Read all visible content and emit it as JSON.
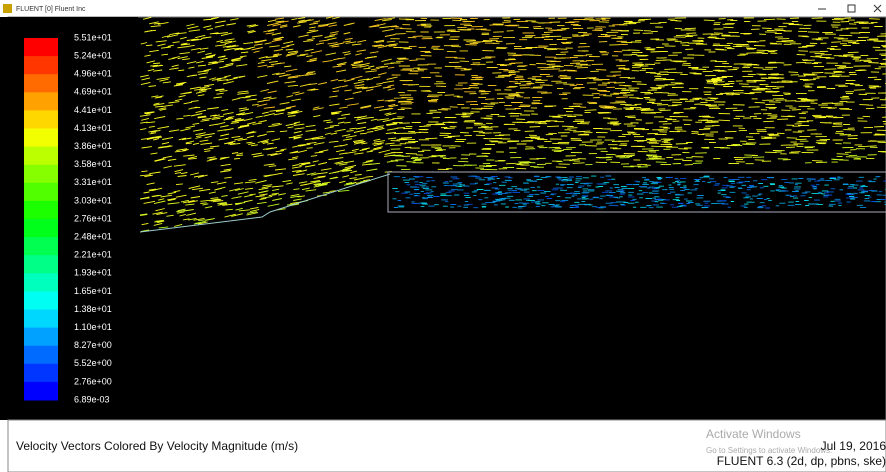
{
  "window": {
    "title": "FLUENT [0] Fluent Inc"
  },
  "colorbar": {
    "labels": [
      "5.51e+01",
      "5.24e+01",
      "4.96e+01",
      "4.69e+01",
      "4.41e+01",
      "4.13e+01",
      "3.86e+01",
      "3.58e+01",
      "3.31e+01",
      "3.03e+01",
      "2.76e+01",
      "2.48e+01",
      "2.21e+01",
      "1.93e+01",
      "1.65e+01",
      "1.38e+01",
      "1.10e+01",
      "8.27e+00",
      "5.52e+00",
      "2.76e+00",
      "6.89e-03"
    ]
  },
  "footer": {
    "caption": "Velocity Vectors Colored By Velocity Magnitude (m/s)",
    "date": "Jul 19, 2016",
    "version": "FLUENT 6.3 (2d, dp, pbns, ske)"
  },
  "watermark": {
    "title": "Activate Windows",
    "subtitle": "Go to Settings to activate Windows."
  }
}
